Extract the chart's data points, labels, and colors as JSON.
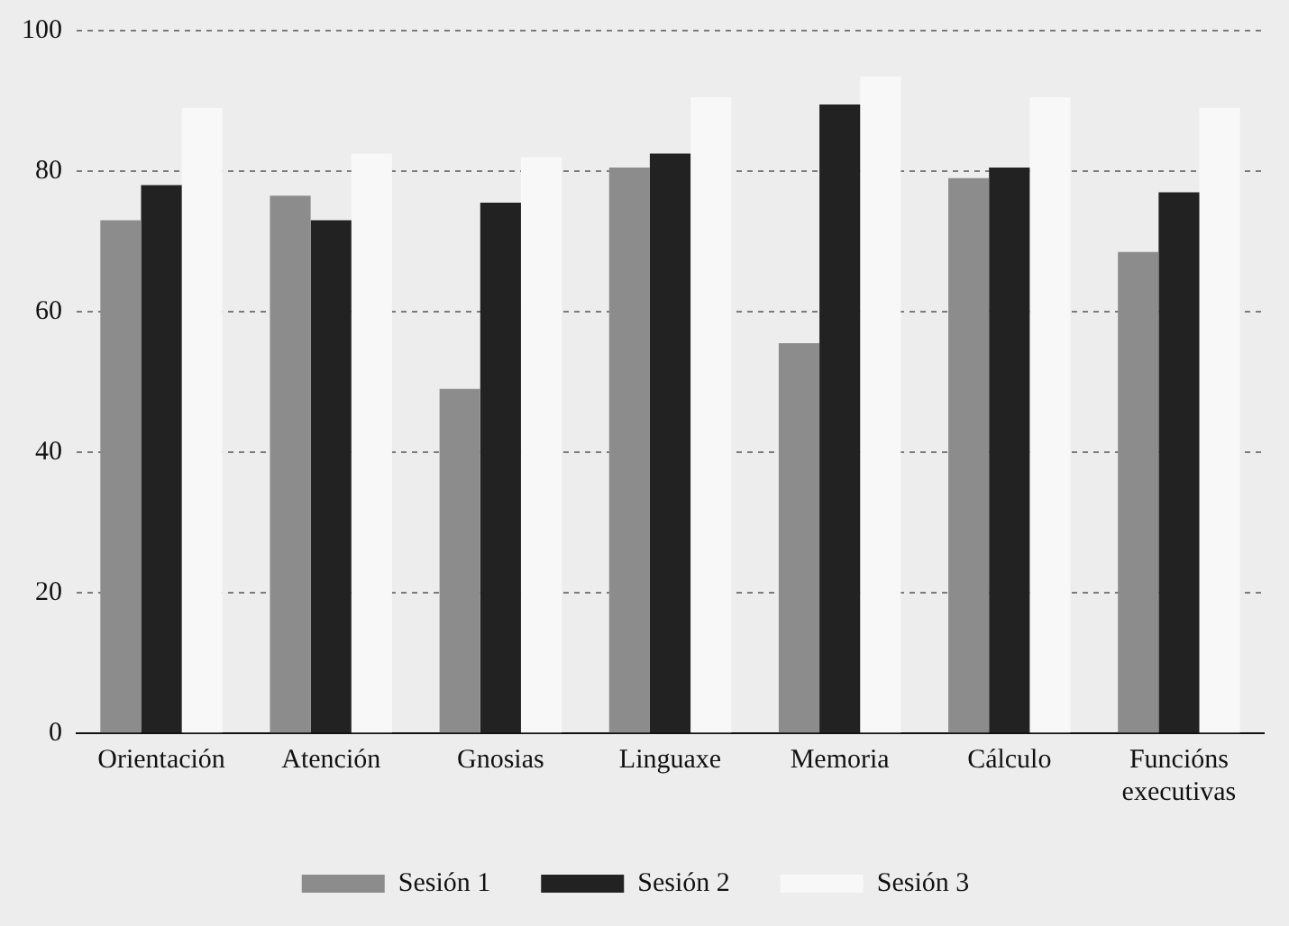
{
  "chart_data": {
    "type": "bar",
    "categories": [
      "Orientación",
      "Atención",
      "Gnosias",
      "Linguaxe",
      "Memoria",
      "Cálculo",
      "Funcións executivas"
    ],
    "series": [
      {
        "name": "Sesión 1",
        "color": "#8c8c8c",
        "values": [
          73,
          76.5,
          49,
          80.5,
          55.5,
          79,
          68.5
        ]
      },
      {
        "name": "Sesión 2",
        "color": "#222222",
        "values": [
          78,
          73,
          75.5,
          82.5,
          89.5,
          80.5,
          77
        ]
      },
      {
        "name": "Sesión 3",
        "color": "#f8f8f8",
        "values": [
          89,
          82.5,
          82,
          90.5,
          93.5,
          90.5,
          89
        ]
      }
    ],
    "ylim": [
      0,
      100
    ],
    "yticks": [
      0,
      20,
      40,
      60,
      80,
      100
    ],
    "grid": "y",
    "legend": "bottom"
  }
}
